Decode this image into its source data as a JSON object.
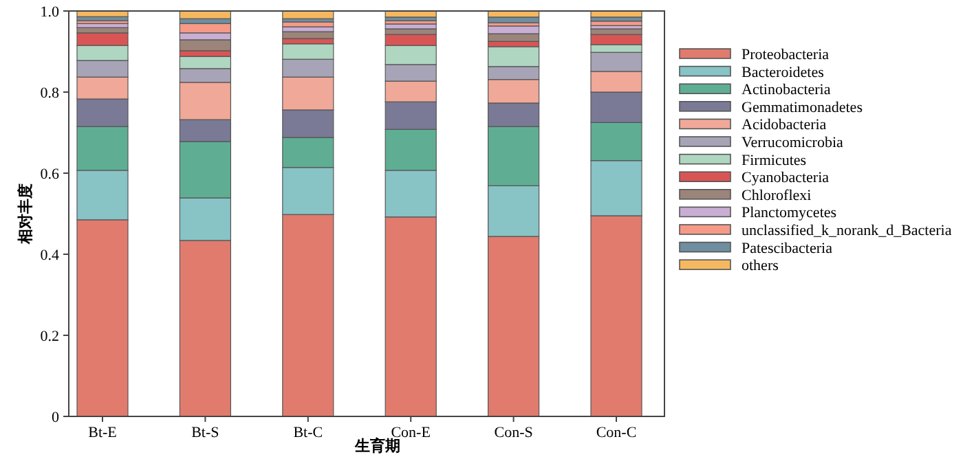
{
  "chart_data": {
    "type": "bar",
    "stacked": true,
    "xlabel": "生育期",
    "ylabel": "相对丰度",
    "categories": [
      "Bt-E",
      "Bt-S",
      "Bt-C",
      "Con-E",
      "Con-S",
      "Con-C"
    ],
    "ylim": [
      0,
      1
    ],
    "yticks": [
      0,
      0.2,
      0.4,
      0.6,
      0.8,
      {
        "value": 1,
        "label": "1.0"
      }
    ],
    "legend": "right",
    "grid": false,
    "series": [
      {
        "name": "Proteobacteria",
        "color": "#e07b6e",
        "values": [
          0.485,
          0.434,
          0.498,
          0.492,
          0.444,
          0.495
        ]
      },
      {
        "name": "Bacteroidetes",
        "color": "#88c3c6",
        "values": [
          0.122,
          0.105,
          0.116,
          0.115,
          0.125,
          0.136
        ]
      },
      {
        "name": "Actinobacteria",
        "color": "#5fae93",
        "values": [
          0.108,
          0.139,
          0.074,
          0.101,
          0.146,
          0.094
        ]
      },
      {
        "name": "Gemmatimonadetes",
        "color": "#7a7a96",
        "values": [
          0.068,
          0.054,
          0.068,
          0.068,
          0.058,
          0.075
        ]
      },
      {
        "name": "Acidobacteria",
        "color": "#f0a898",
        "values": [
          0.054,
          0.092,
          0.081,
          0.051,
          0.058,
          0.051
        ]
      },
      {
        "name": "Verrucomicrobia",
        "color": "#a7a4b7",
        "values": [
          0.041,
          0.034,
          0.044,
          0.041,
          0.032,
          0.047
        ]
      },
      {
        "name": "Firmicutes",
        "color": "#afd6c0",
        "values": [
          0.037,
          0.03,
          0.038,
          0.047,
          0.049,
          0.019
        ]
      },
      {
        "name": "Cyanobacteria",
        "color": "#d95555",
        "values": [
          0.031,
          0.014,
          0.013,
          0.027,
          0.013,
          0.025
        ]
      },
      {
        "name": "Chloroflexi",
        "color": "#9b8479",
        "values": [
          0.013,
          0.027,
          0.017,
          0.014,
          0.019,
          0.014
        ]
      },
      {
        "name": "Planctomycetes",
        "color": "#c9aed4",
        "values": [
          0.01,
          0.017,
          0.012,
          0.012,
          0.019,
          0.008
        ]
      },
      {
        "name": "unclassified_k_norank_d_Bacteria",
        "color": "#f59a86",
        "values": [
          0.007,
          0.023,
          0.012,
          0.008,
          0.008,
          0.011
        ]
      },
      {
        "name": "Patescibacteria",
        "color": "#6f8ea0",
        "values": [
          0.01,
          0.012,
          0.008,
          0.009,
          0.014,
          0.01
        ]
      },
      {
        "name": "others",
        "color": "#f5b860",
        "values": [
          0.014,
          0.019,
          0.019,
          0.015,
          0.015,
          0.015
        ]
      }
    ]
  }
}
